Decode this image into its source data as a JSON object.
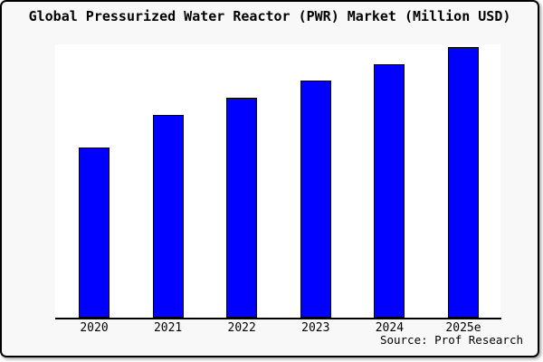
{
  "title": "Global Pressurized Water Reactor (PWR) Market (Million USD)",
  "source": "Source: Prof Research",
  "colors": {
    "bar_fill": "#0000ff",
    "bar_border": "#000000",
    "plot_background": "#ffffff",
    "page_background": "#f8f8f8",
    "frame_border": "#000000",
    "text": "#000000"
  },
  "chart_data": {
    "type": "bar",
    "title": "Global Pressurized Water Reactor (PWR) Market (Million USD)",
    "categories": [
      "2020",
      "2021",
      "2022",
      "2023",
      "2024",
      "2025e"
    ],
    "values": [
      188,
      224,
      243,
      262,
      280,
      299
    ],
    "xlabel": "",
    "ylabel": "",
    "ylim": [
      0,
      302
    ],
    "y_axis_labeled": false,
    "grid": false,
    "legend": false,
    "units": "Million USD (y-axis unlabeled; values are estimated relative heights)",
    "source": "Source: Prof Research"
  }
}
